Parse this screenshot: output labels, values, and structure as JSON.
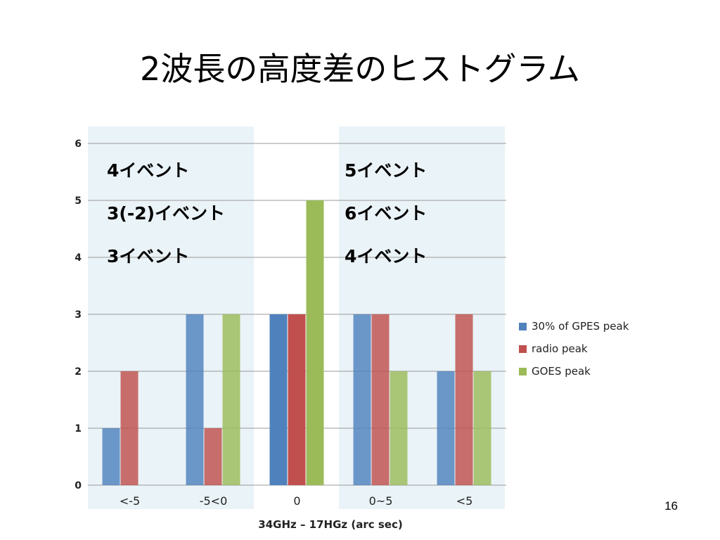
{
  "slide": {
    "title": "2波長の高度差のヒストグラム",
    "page_number": "16"
  },
  "chart_data": {
    "type": "bar",
    "categories": [
      "<-5",
      "-5<0",
      "0",
      "0~5",
      "<5"
    ],
    "series": [
      {
        "name": "30% of GPES peak",
        "values": [
          1,
          3,
          3,
          3,
          2
        ],
        "color": "#4F81BD"
      },
      {
        "name": "radio peak",
        "values": [
          2,
          1,
          3,
          3,
          3
        ],
        "color": "#C0504D"
      },
      {
        "name": "GOES peak",
        "values": [
          0,
          3,
          5,
          2,
          2
        ],
        "color": "#9BBB59"
      }
    ],
    "xlabel": "34GHz – 17HGz (arc sec)",
    "ylabel": "",
    "ylim": [
      0,
      6
    ],
    "yticks": [
      "0",
      "1",
      "2",
      "3",
      "4",
      "5",
      "6"
    ],
    "grid": true,
    "legend_position": "right",
    "highlight_bands": [
      "<-5 to -5<0",
      "0~5 to <5"
    ],
    "highlight_color": "#EAF3F7",
    "annotations": {
      "left": [
        {
          "text": "4イベント",
          "color": "#0000FF"
        },
        {
          "text": "3(-2)イベント",
          "color": "#FF0000"
        },
        {
          "text": "3イベント",
          "color": "#9ACD32"
        }
      ],
      "right": [
        {
          "text": "5イベント",
          "color": "#0000FF"
        },
        {
          "text": "6イベント",
          "color": "#FF0000"
        },
        {
          "text": "4イベント",
          "color": "#9ACD32"
        }
      ]
    }
  }
}
